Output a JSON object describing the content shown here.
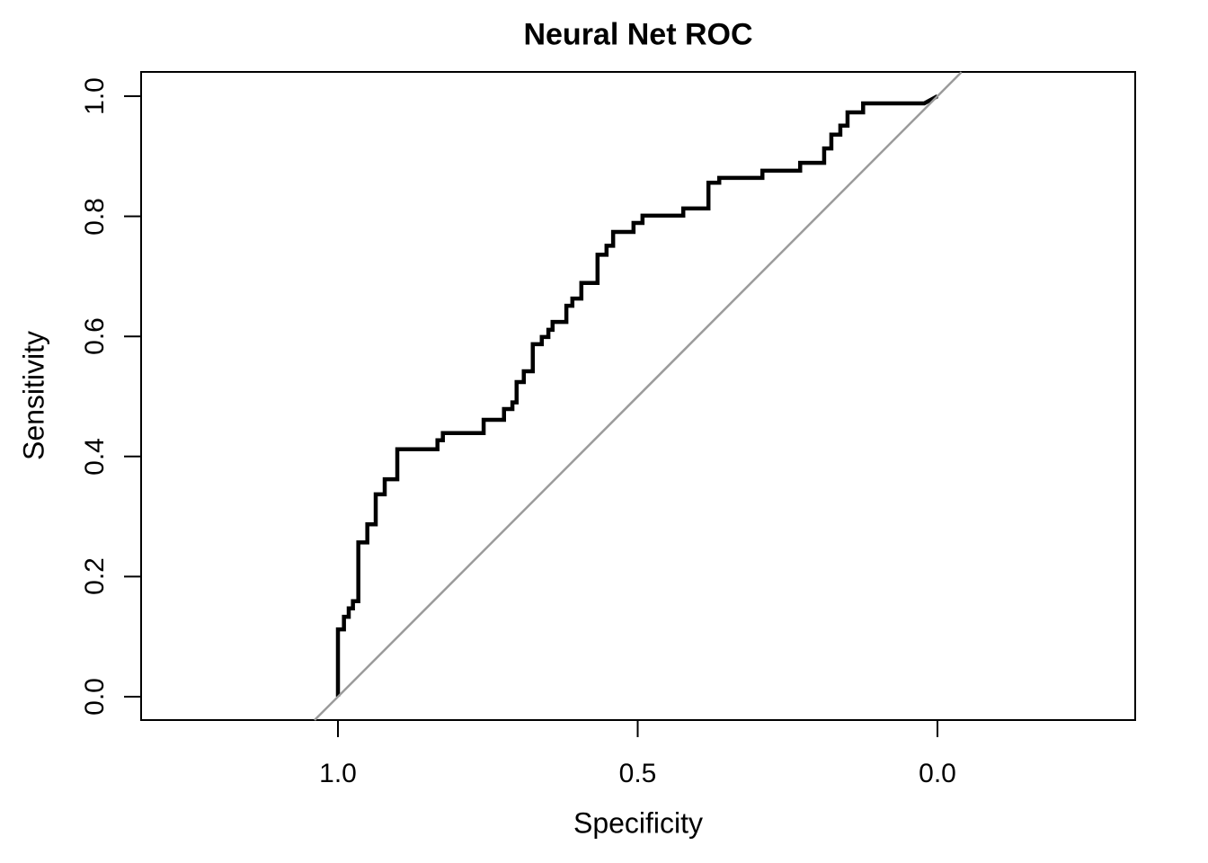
{
  "figure": {
    "background_color": "#ffffff",
    "text_color": "#000000"
  },
  "chart_data": {
    "type": "line",
    "subtype": "roc-step-curve",
    "title": "Neural Net ROC",
    "xlabel": "Specificity",
    "ylabel": "Sensitivity",
    "grid": false,
    "legend": null,
    "x_axis": {
      "reversed": true,
      "ticks": [
        {
          "value": 1.0,
          "label": "1.0"
        },
        {
          "value": 0.5,
          "label": "0.5"
        },
        {
          "value": 0.0,
          "label": "0.0"
        }
      ],
      "data_range": [
        1.0,
        0.0
      ],
      "shown_range": [
        1.33,
        -0.33
      ]
    },
    "y_axis": {
      "ticks": [
        {
          "value": 0.0,
          "label": "0.0"
        },
        {
          "value": 0.2,
          "label": "0.2"
        },
        {
          "value": 0.4,
          "label": "0.4"
        },
        {
          "value": 0.6,
          "label": "0.6"
        },
        {
          "value": 0.8,
          "label": "0.8"
        },
        {
          "value": 1.0,
          "label": "1.0"
        }
      ],
      "data_range": [
        0.0,
        1.0
      ],
      "shown_range": [
        -0.04,
        1.04
      ]
    },
    "series": [
      {
        "name": "neural-net-roc-curve",
        "render": "step",
        "end_segment": "diagonal",
        "color": "#000000",
        "stroke_width": 4.5,
        "points_format": [
          "specificity",
          "sensitivity"
        ],
        "points": [
          [
            1.0,
            0.0
          ],
          [
            1.0,
            0.112
          ],
          [
            0.99,
            0.133
          ],
          [
            0.982,
            0.147
          ],
          [
            0.975,
            0.159
          ],
          [
            0.966,
            0.257
          ],
          [
            0.951,
            0.287
          ],
          [
            0.937,
            0.337
          ],
          [
            0.922,
            0.362
          ],
          [
            0.901,
            0.412
          ],
          [
            0.834,
            0.427
          ],
          [
            0.825,
            0.439
          ],
          [
            0.757,
            0.461
          ],
          [
            0.723,
            0.479
          ],
          [
            0.709,
            0.49
          ],
          [
            0.702,
            0.524
          ],
          [
            0.69,
            0.542
          ],
          [
            0.675,
            0.587
          ],
          [
            0.66,
            0.599
          ],
          [
            0.649,
            0.611
          ],
          [
            0.642,
            0.624
          ],
          [
            0.619,
            0.651
          ],
          [
            0.609,
            0.663
          ],
          [
            0.594,
            0.689
          ],
          [
            0.567,
            0.736
          ],
          [
            0.552,
            0.751
          ],
          [
            0.541,
            0.774
          ],
          [
            0.507,
            0.789
          ],
          [
            0.492,
            0.801
          ],
          [
            0.424,
            0.813
          ],
          [
            0.382,
            0.856
          ],
          [
            0.364,
            0.864
          ],
          [
            0.292,
            0.876
          ],
          [
            0.229,
            0.889
          ],
          [
            0.189,
            0.913
          ],
          [
            0.177,
            0.936
          ],
          [
            0.162,
            0.951
          ],
          [
            0.15,
            0.973
          ],
          [
            0.124,
            0.988
          ],
          [
            0.022,
            0.988
          ],
          [
            0.0,
            1.0
          ]
        ]
      },
      {
        "name": "chance-diagonal",
        "render": "line",
        "color": "#9b9b9b",
        "stroke_width": 2.5,
        "points_format": [
          "specificity",
          "sensitivity"
        ],
        "points": [
          [
            1.039,
            -0.039
          ],
          [
            -0.04,
            1.04
          ]
        ]
      }
    ],
    "frame_color": "#000000"
  }
}
